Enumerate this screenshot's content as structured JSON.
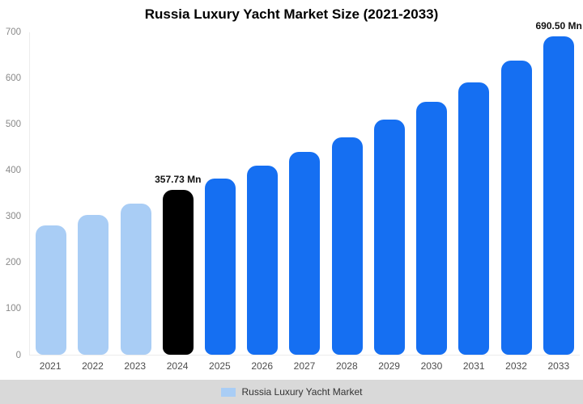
{
  "colors": {
    "past": "#a9cdf5",
    "current": "#000000",
    "forecast": "#156ff2",
    "legend_bg": "#d9d9d9",
    "axis_text": "#8a8a8a",
    "year_text": "#4d4d4d",
    "annotation_text": "#111111"
  },
  "chart_data": {
    "type": "bar",
    "title": "Russia Luxury Yacht Market Size (2021-2033)",
    "xlabel": "",
    "ylabel": "",
    "ylim": [
      0,
      700
    ],
    "yticks": [
      0,
      100,
      200,
      300,
      400,
      500,
      600,
      700
    ],
    "grid": false,
    "legend_position": "bottom",
    "categories": [
      "2021",
      "2022",
      "2023",
      "2024",
      "2025",
      "2026",
      "2027",
      "2028",
      "2029",
      "2030",
      "2031",
      "2032",
      "2033"
    ],
    "values": [
      281,
      304,
      328,
      357.73,
      383,
      410,
      440,
      472,
      510,
      549,
      591,
      638,
      690.5
    ],
    "bar_roles": [
      "past",
      "past",
      "past",
      "current",
      "forecast",
      "forecast",
      "forecast",
      "forecast",
      "forecast",
      "forecast",
      "forecast",
      "forecast",
      "forecast"
    ],
    "annotations": [
      {
        "index": 3,
        "label": "357.73 Mn"
      },
      {
        "index": 12,
        "label": "690.50 Mn"
      }
    ],
    "legend": [
      {
        "label": "Russia Luxury Yacht Market",
        "color": "#a9cdf5"
      }
    ]
  }
}
